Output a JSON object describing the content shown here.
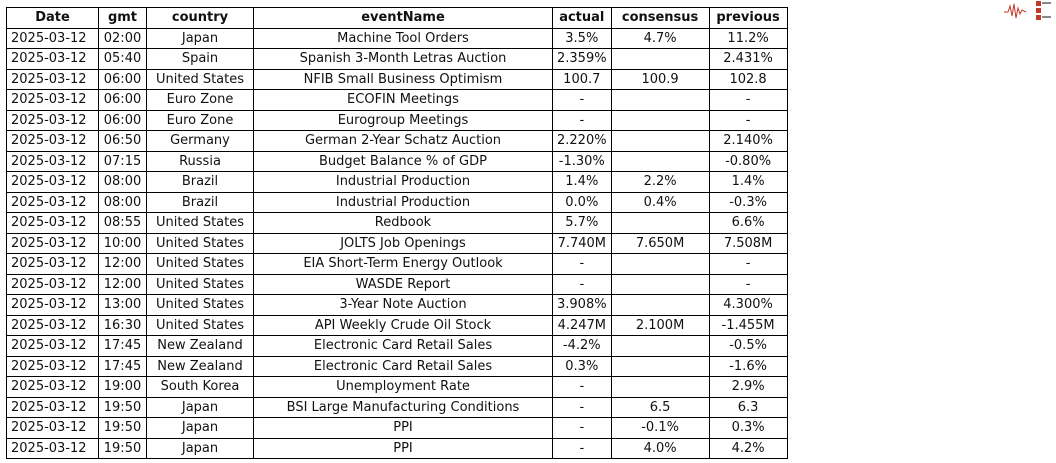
{
  "table": {
    "columns": [
      "Date",
      "gmt",
      "country",
      "eventName",
      "actual",
      "consensus",
      "previous"
    ],
    "rows": [
      [
        "2025-03-12",
        "02:00",
        "Japan",
        "Machine Tool Orders",
        "3.5%",
        "4.7%",
        "11.2%"
      ],
      [
        "2025-03-12",
        "05:40",
        "Spain",
        "Spanish 3-Month Letras Auction",
        "2.359%",
        null,
        "2.431%"
      ],
      [
        "2025-03-12",
        "06:00",
        "United States",
        "NFIB Small Business Optimism",
        "100.7",
        "100.9",
        "102.8"
      ],
      [
        "2025-03-12",
        "06:00",
        "Euro Zone",
        "ECOFIN Meetings",
        "-",
        null,
        "-"
      ],
      [
        "2025-03-12",
        "06:00",
        "Euro Zone",
        "Eurogroup Meetings",
        "-",
        null,
        "-"
      ],
      [
        "2025-03-12",
        "06:50",
        "Germany",
        "German 2-Year Schatz Auction",
        "2.220%",
        null,
        "2.140%"
      ],
      [
        "2025-03-12",
        "07:15",
        "Russia",
        "Budget Balance % of GDP",
        "-1.30%",
        null,
        "-0.80%"
      ],
      [
        "2025-03-12",
        "08:00",
        "Brazil",
        "Industrial Production",
        "1.4%",
        "2.2%",
        "1.4%"
      ],
      [
        "2025-03-12",
        "08:00",
        "Brazil",
        "Industrial Production",
        "0.0%",
        "0.4%",
        "-0.3%"
      ],
      [
        "2025-03-12",
        "08:55",
        "United States",
        "Redbook",
        "5.7%",
        null,
        "6.6%"
      ],
      [
        "2025-03-12",
        "10:00",
        "United States",
        "JOLTS Job Openings",
        "7.740M",
        "7.650M",
        "7.508M"
      ],
      [
        "2025-03-12",
        "12:00",
        "United States",
        "EIA Short-Term Energy Outlook",
        "-",
        null,
        "-"
      ],
      [
        "2025-03-12",
        "12:00",
        "United States",
        "WASDE Report",
        "-",
        null,
        "-"
      ],
      [
        "2025-03-12",
        "13:00",
        "United States",
        "3-Year Note Auction",
        "3.908%",
        null,
        "4.300%"
      ],
      [
        "2025-03-12",
        "16:30",
        "United States",
        "API Weekly Crude Oil Stock",
        "4.247M",
        "2.100M",
        "-1.455M"
      ],
      [
        "2025-03-12",
        "17:45",
        "New Zealand",
        "Electronic Card Retail Sales",
        "-4.2%",
        null,
        "-0.5%"
      ],
      [
        "2025-03-12",
        "17:45",
        "New Zealand",
        "Electronic Card Retail Sales",
        "0.3%",
        null,
        "-1.6%"
      ],
      [
        "2025-03-12",
        "19:00",
        "South Korea",
        "Unemployment Rate",
        "-",
        null,
        "2.9%"
      ],
      [
        "2025-03-12",
        "19:50",
        "Japan",
        "BSI Large Manufacturing Conditions",
        "-",
        "6.5",
        "6.3"
      ],
      [
        "2025-03-12",
        "19:50",
        "Japan",
        "PPI",
        "-",
        "-0.1%",
        "0.3%"
      ],
      [
        "2025-03-12",
        "19:50",
        "Japan",
        "PPI",
        "-",
        "4.0%",
        "4.2%"
      ]
    ]
  }
}
